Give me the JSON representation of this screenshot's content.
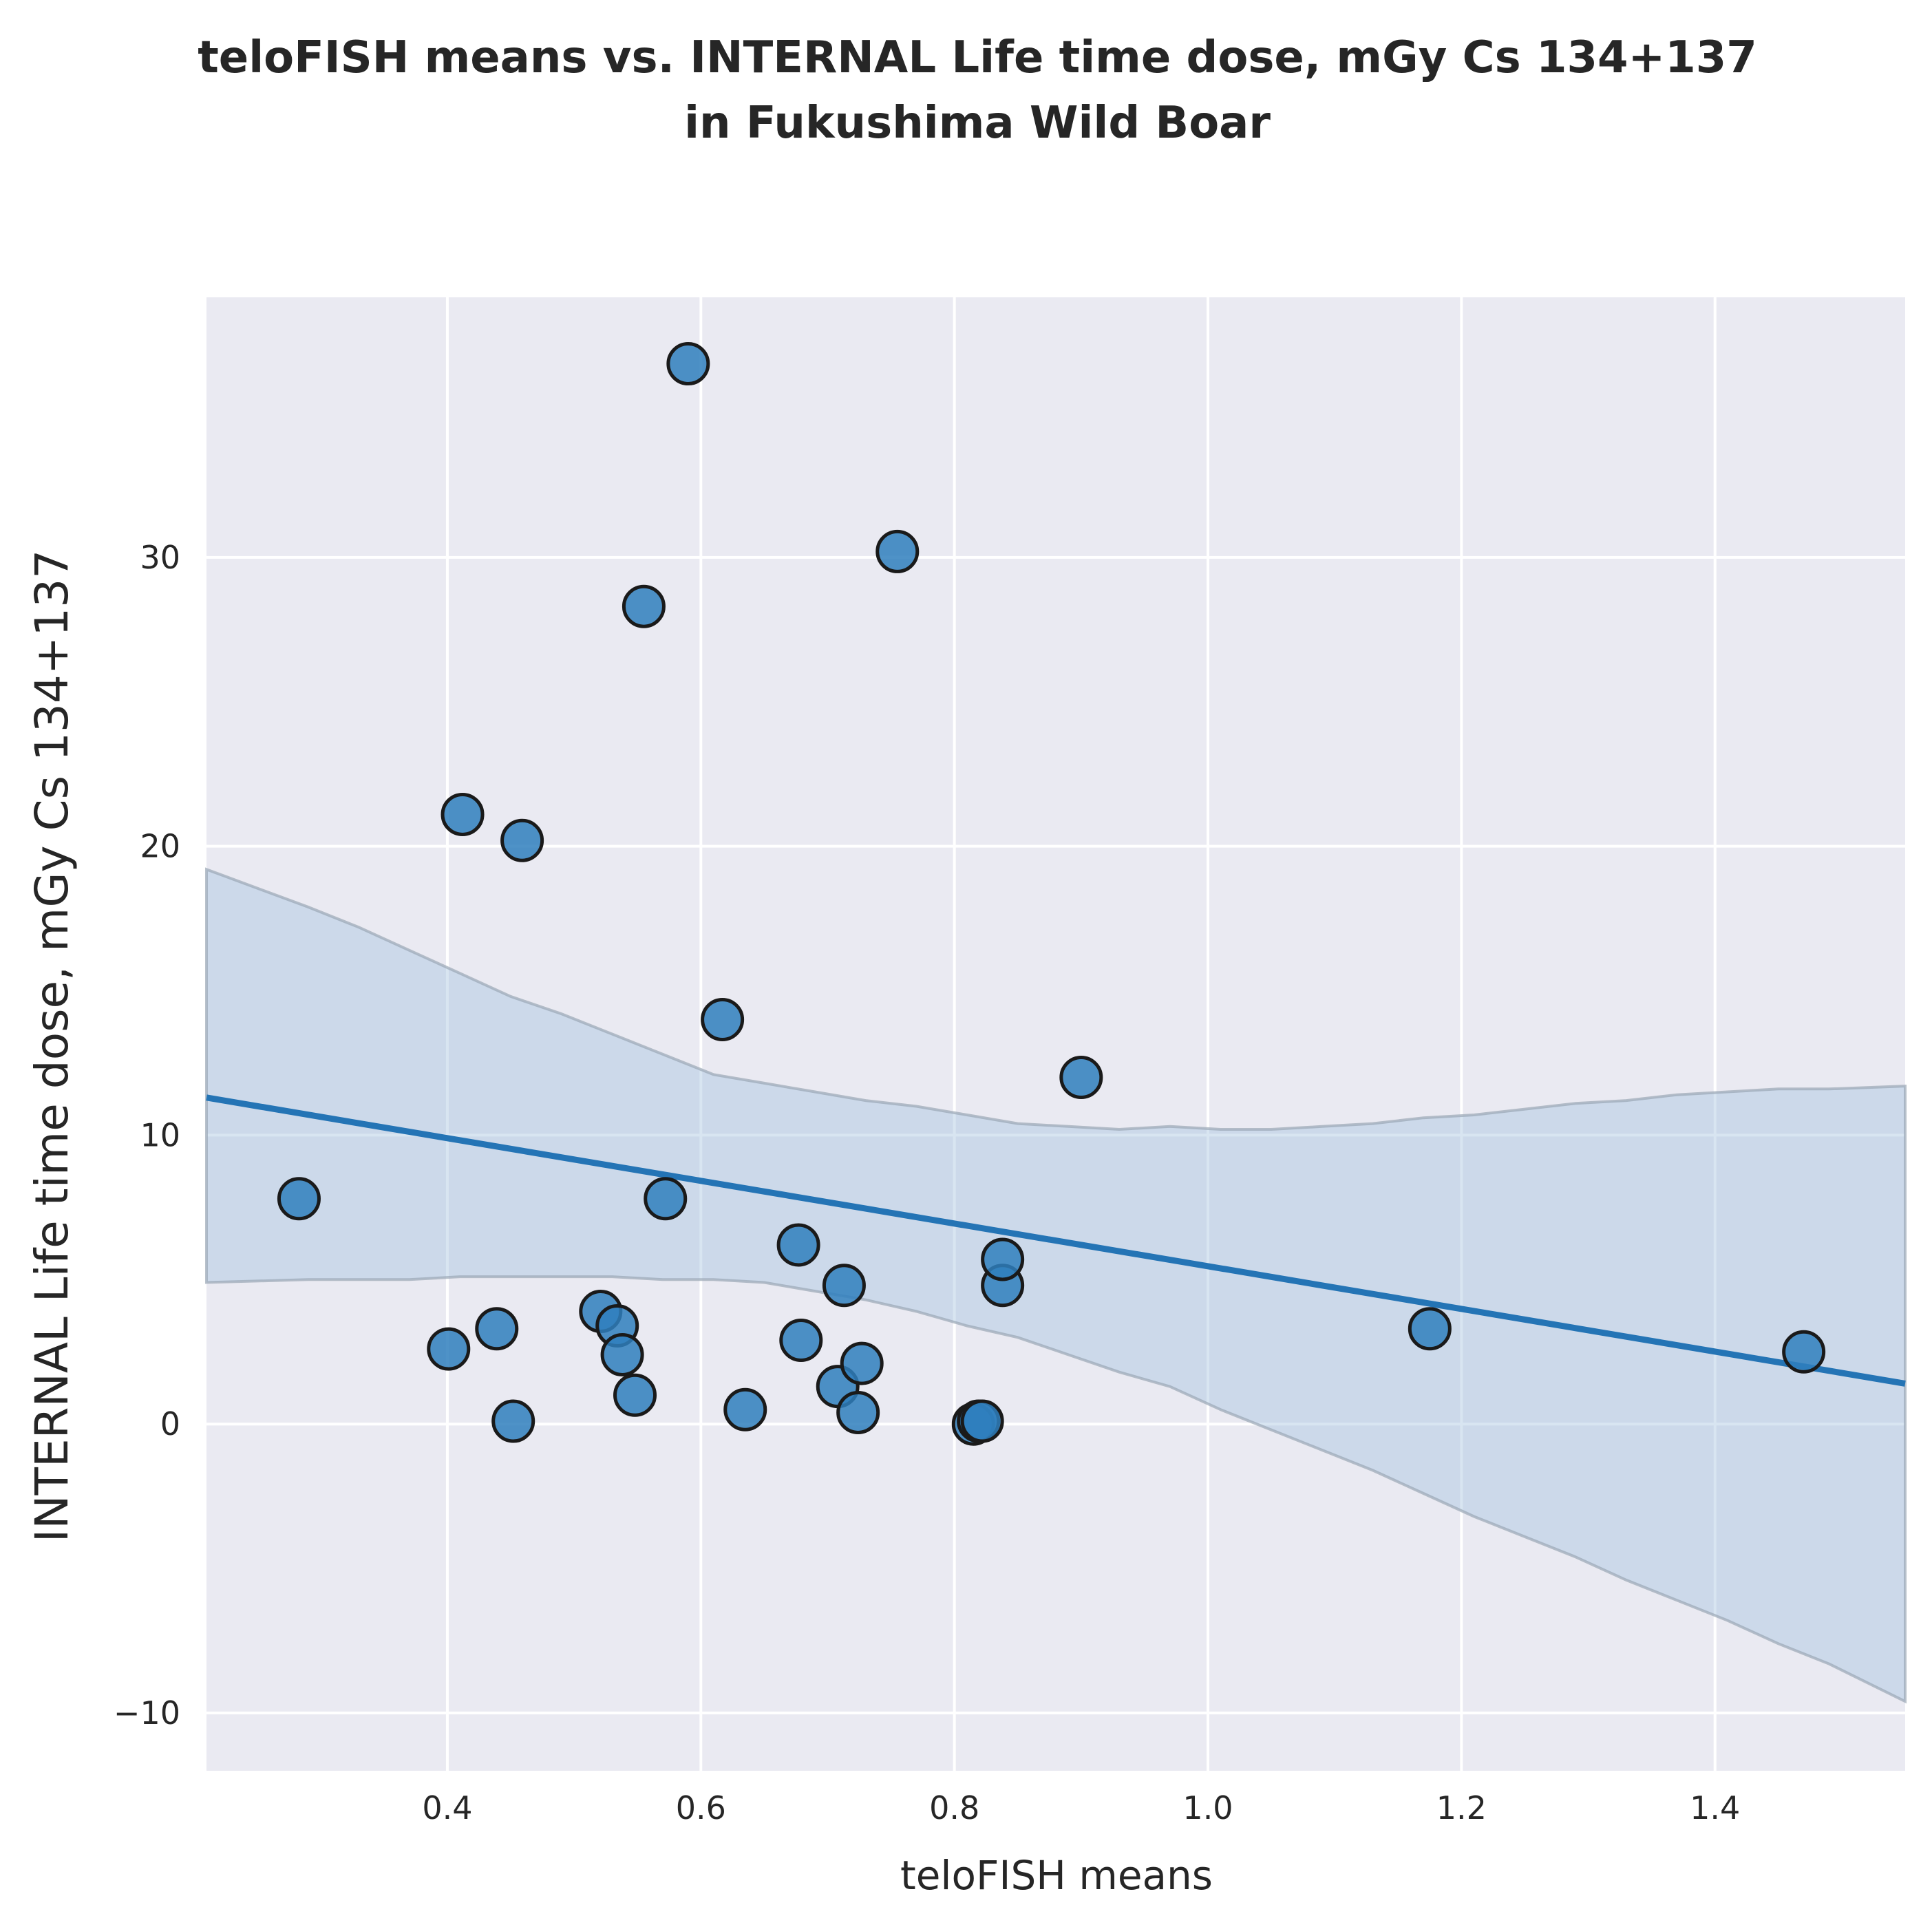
{
  "chart_data": {
    "type": "scatter",
    "title_lines": [
      "teloFISH means vs. INTERNAL Life time dose, mGy Cs 134+137",
      "in Fukushima Wild Boar"
    ],
    "xlabel": "teloFISH means",
    "ylabel": "INTERNAL Life time dose, mGy Cs 134+137",
    "xlim": [
      0.21,
      1.55
    ],
    "ylim": [
      -12.0,
      39.0
    ],
    "xticks": [
      0.4,
      0.6,
      0.8,
      1.0,
      1.2,
      1.4
    ],
    "xtick_labels": [
      "0.4",
      "0.6",
      "0.8",
      "1.0",
      "1.2",
      "1.4"
    ],
    "yticks": [
      -10,
      0,
      10,
      20,
      30
    ],
    "ytick_labels": [
      "−10",
      "0",
      "10",
      "20",
      "30"
    ],
    "grid": true,
    "background": "#eaeaf2",
    "point_color": "#2f7fbd",
    "line_color": "#2474b5",
    "band_color": "#a9c6e0",
    "points": [
      {
        "x": 0.283,
        "y": 7.8
      },
      {
        "x": 0.401,
        "y": 2.6
      },
      {
        "x": 0.412,
        "y": 21.1
      },
      {
        "x": 0.439,
        "y": 3.3
      },
      {
        "x": 0.452,
        "y": 0.1
      },
      {
        "x": 0.459,
        "y": 20.2
      },
      {
        "x": 0.521,
        "y": 3.9
      },
      {
        "x": 0.534,
        "y": 3.4
      },
      {
        "x": 0.538,
        "y": 2.4
      },
      {
        "x": 0.548,
        "y": 1.0
      },
      {
        "x": 0.555,
        "y": 28.3
      },
      {
        "x": 0.572,
        "y": 7.8
      },
      {
        "x": 0.59,
        "y": 36.7
      },
      {
        "x": 0.617,
        "y": 14.0
      },
      {
        "x": 0.635,
        "y": 0.5
      },
      {
        "x": 0.677,
        "y": 6.2
      },
      {
        "x": 0.679,
        "y": 2.9
      },
      {
        "x": 0.708,
        "y": 1.3
      },
      {
        "x": 0.713,
        "y": 4.8
      },
      {
        "x": 0.724,
        "y": 0.4
      },
      {
        "x": 0.727,
        "y": 2.1
      },
      {
        "x": 0.755,
        "y": 30.2
      },
      {
        "x": 0.815,
        "y": 0.0
      },
      {
        "x": 0.819,
        "y": 0.1
      },
      {
        "x": 0.822,
        "y": 0.1
      },
      {
        "x": 0.838,
        "y": 4.8
      },
      {
        "x": 0.838,
        "y": 5.7
      },
      {
        "x": 0.9,
        "y": 12.0
      },
      {
        "x": 1.175,
        "y": 3.3
      },
      {
        "x": 1.47,
        "y": 2.5
      }
    ],
    "regression_line": {
      "x": [
        0.21,
        1.55
      ],
      "y": [
        11.3,
        1.4
      ]
    },
    "confidence_band": {
      "x": [
        0.21,
        0.29,
        0.33,
        0.37,
        0.41,
        0.45,
        0.49,
        0.53,
        0.57,
        0.61,
        0.65,
        0.69,
        0.73,
        0.77,
        0.81,
        0.85,
        0.89,
        0.93,
        0.97,
        1.01,
        1.05,
        1.09,
        1.13,
        1.17,
        1.21,
        1.25,
        1.29,
        1.33,
        1.37,
        1.41,
        1.45,
        1.49,
        1.55
      ],
      "upper": [
        19.2,
        17.9,
        17.2,
        16.4,
        15.6,
        14.8,
        14.2,
        13.5,
        12.8,
        12.1,
        11.8,
        11.5,
        11.2,
        11.0,
        10.7,
        10.4,
        10.3,
        10.2,
        10.3,
        10.2,
        10.2,
        10.3,
        10.4,
        10.6,
        10.7,
        10.9,
        11.1,
        11.2,
        11.4,
        11.5,
        11.6,
        11.6,
        11.7
      ],
      "lower": [
        4.9,
        5.0,
        5.0,
        5.0,
        5.1,
        5.1,
        5.1,
        5.1,
        5.0,
        5.0,
        4.9,
        4.6,
        4.3,
        3.9,
        3.4,
        3.0,
        2.4,
        1.8,
        1.3,
        0.5,
        -0.2,
        -0.9,
        -1.6,
        -2.4,
        -3.2,
        -3.9,
        -4.6,
        -5.4,
        -6.1,
        -6.8,
        -7.6,
        -8.3,
        -9.6
      ]
    }
  }
}
